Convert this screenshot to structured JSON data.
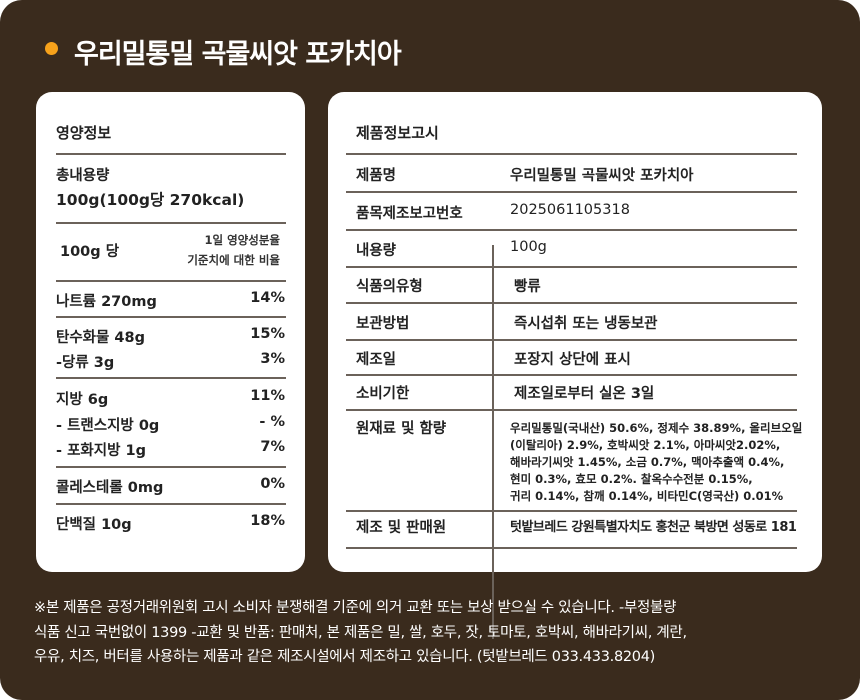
{
  "header": {
    "title": "우리밀통밀 곡물씨앗 포카치아",
    "accent": "#f7a21b",
    "background": "#3a2b1d"
  },
  "nutrition": {
    "title": "영양정보",
    "total_label": "총내용량",
    "total_value": "100g(100g당 270kcal)",
    "per": "100g 당",
    "dv_line1": "1일 영양성분율",
    "dv_line2": "기준치에 대한 비율",
    "rows": [
      {
        "name": "나트륨 270mg",
        "pct": "14%"
      },
      {
        "name": "탄수화물 48g",
        "pct": "15%"
      },
      {
        "name": "-당류 3g",
        "pct": "3%"
      },
      {
        "name": "지방 6g",
        "pct": "11%"
      },
      {
        "name": "- 트랜스지방 0g",
        "pct": "- %"
      },
      {
        "name": "- 포화지방 1g",
        "pct": "7%"
      },
      {
        "name": "콜레스테롤 0mg",
        "pct": "0%"
      },
      {
        "name": "단백질 10g",
        "pct": "18%"
      }
    ]
  },
  "product_info": {
    "title": "제품정보고시",
    "rows": [
      {
        "label": "제품명",
        "value": "우리밀통밀 곡물씨앗 포카치아"
      },
      {
        "label": "품목제조보고번호",
        "value": "2025061105318"
      },
      {
        "label": "내용량",
        "value": "100g"
      },
      {
        "label": "식품의유형",
        "value": "빵류"
      },
      {
        "label": "보관방법",
        "value": "즉시섭취 또는 냉동보관"
      },
      {
        "label": "제조일",
        "value": "포장지 상단에 표시"
      },
      {
        "label": "소비기한",
        "value": "제조일로부터 실온 3일"
      },
      {
        "label": "원재료 및 함량",
        "value_lines": [
          "우리밀통밀(국내산) 50.6%, 정제수 38.89%, 올리브오일",
          "(이탈리아) 2.9%, 호박씨앗 2.1%, 아마씨앗2.02%,",
          "해바라기씨앗 1.45%, 소금 0.7%, 맥아추출액 0.4%,",
          "현미 0.3%, 효모 0.2%. 찰옥수수전분 0.15%,",
          "귀리 0.14%, 참깨 0.14%, 비타민C(영국산) 0.01%"
        ]
      },
      {
        "label": "제조 및 판매원",
        "value": "텃밭브레드  강원특별자치도 홍천군 북방면 성동로 181"
      }
    ]
  },
  "footer": {
    "lines": [
      "※본 제품은 공정거래위원회 고시 소비자 분쟁해결 기준에 의거 교환 또는 보상 받으실 수 있습니다. -부정불량",
      "식품 신고 국번없이 1399 -교환 및 반품: 판매처, 본 제품은 밀, 쌀, 호두, 잣, 토마토, 호박씨, 해바라기씨, 계란,",
      "우유, 치즈, 버터를 사용하는 제품과 같은 제조시설에서 제조하고 있습니다. (텃밭브레드 033.433.8204)"
    ]
  }
}
